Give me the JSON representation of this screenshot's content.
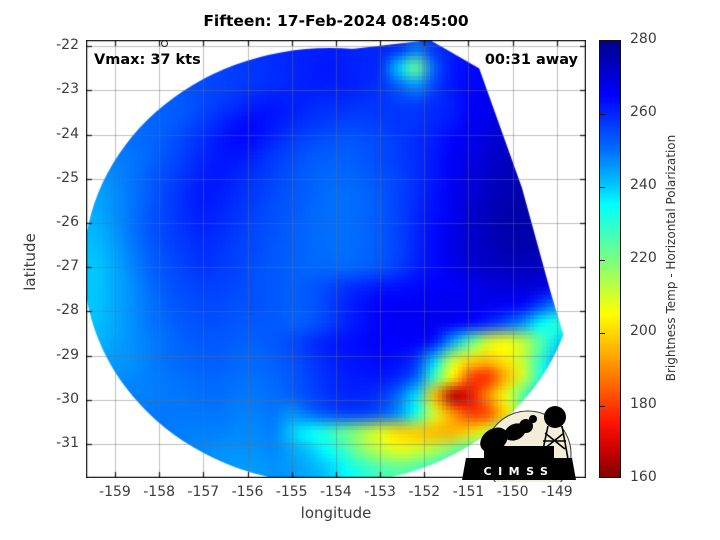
{
  "title": "Fifteen: 17-Feb-2024 08:45:00",
  "annotations": {
    "vmax": "Vmax: 37 kts",
    "time_away": "00:31 away"
  },
  "axes": {
    "xlabel": "longitude",
    "ylabel": "latitude",
    "xticks": [
      -159,
      -158,
      -157,
      -156,
      -155,
      -154,
      -153,
      -152,
      -151,
      -150,
      -149
    ],
    "yticks": [
      -22,
      -23,
      -24,
      -25,
      -26,
      -27,
      -28,
      -29,
      -30,
      -31
    ],
    "xlim": [
      -159.655,
      -148.34
    ],
    "ylim": [
      -31.77,
      -21.86
    ],
    "grid": "on"
  },
  "colorbar": {
    "label": "Brightness Temp - Horizontal Polarization",
    "min": 160,
    "max": 280,
    "ticks": [
      280,
      260,
      240,
      220,
      200,
      180,
      160
    ],
    "stops": [
      [
        160,
        "#7f0000"
      ],
      [
        167,
        "#c80000"
      ],
      [
        175,
        "#ff1400"
      ],
      [
        185,
        "#ff6400"
      ],
      [
        195,
        "#ffb400"
      ],
      [
        205,
        "#ffff00"
      ],
      [
        212,
        "#bfff3c"
      ],
      [
        220,
        "#78ff82"
      ],
      [
        225,
        "#50ffaa"
      ],
      [
        235,
        "#00ffff"
      ],
      [
        240,
        "#00c8ff"
      ],
      [
        250,
        "#006eff"
      ],
      [
        265,
        "#0000ff"
      ],
      [
        280,
        "#00008c"
      ]
    ]
  },
  "marker": {
    "lon": -157.9,
    "lat": -21.93
  },
  "logo": {
    "text": "CIMSS"
  },
  "chart_data": {
    "type": "heatmap",
    "title": "Fifteen: 17-Feb-2024 08:45:00",
    "xlabel": "longitude",
    "ylabel": "latitude",
    "value_label": "Brightness Temp - Horizontal Polarization (K)",
    "value_range": [
      160,
      280
    ],
    "lon_range": [
      -159.655,
      -148.34
    ],
    "lat_range": [
      -31.77,
      -21.86
    ],
    "nx": 28,
    "ny": 24,
    "note": "coarse grid of brightness temperatures (K), row 0 = north (-21.9 lat), col 0 = west (-159.6 lon); circular microwave swath, warm convective burst near lon -151, lat -30",
    "values": [
      [
        254,
        254,
        254,
        255,
        255,
        256,
        256,
        257,
        257,
        258,
        259,
        260,
        261,
        261,
        261,
        260,
        260,
        259,
        250,
        258,
        261,
        263,
        264,
        265,
        265,
        265,
        265,
        265
      ],
      [
        253,
        253,
        253,
        254,
        254,
        255,
        255,
        256,
        257,
        258,
        259,
        260,
        261,
        262,
        261,
        260,
        259,
        240,
        222,
        252,
        262,
        264,
        265,
        266,
        266,
        266,
        266,
        266
      ],
      [
        252,
        252,
        252,
        253,
        253,
        254,
        255,
        256,
        257,
        258,
        259,
        260,
        261,
        261,
        261,
        260,
        258,
        252,
        246,
        256,
        262,
        264,
        266,
        267,
        268,
        268,
        268,
        268
      ],
      [
        251,
        251,
        251,
        252,
        252,
        253,
        255,
        257,
        259,
        261,
        262,
        261,
        260,
        259,
        259,
        258,
        258,
        257,
        257,
        259,
        261,
        265,
        267,
        269,
        270,
        270,
        270,
        270
      ],
      [
        250,
        250,
        250,
        251,
        252,
        254,
        257,
        260,
        263,
        264,
        262,
        260,
        258,
        257,
        256,
        256,
        257,
        258,
        258,
        260,
        262,
        266,
        268,
        271,
        272,
        272,
        272,
        272
      ],
      [
        249,
        249,
        250,
        251,
        253,
        256,
        259,
        262,
        264,
        263,
        260,
        257,
        255,
        254,
        253,
        254,
        255,
        257,
        259,
        261,
        265,
        267,
        270,
        272,
        273,
        273,
        273,
        273
      ],
      [
        247,
        248,
        249,
        251,
        254,
        257,
        260,
        262,
        262,
        260,
        257,
        255,
        253,
        252,
        252,
        253,
        255,
        257,
        259,
        262,
        266,
        268,
        271,
        273,
        274,
        274,
        274,
        274
      ],
      [
        245,
        247,
        249,
        252,
        255,
        258,
        261,
        262,
        260,
        258,
        256,
        254,
        252,
        251,
        251,
        252,
        254,
        256,
        259,
        262,
        266,
        269,
        272,
        274,
        275,
        275,
        275,
        275
      ],
      [
        244,
        246,
        249,
        252,
        256,
        259,
        262,
        261,
        259,
        257,
        255,
        253,
        252,
        250,
        250,
        251,
        253,
        256,
        259,
        263,
        267,
        270,
        273,
        275,
        276,
        276,
        276,
        275
      ],
      [
        243,
        246,
        249,
        253,
        256,
        259,
        261,
        260,
        258,
        256,
        254,
        253,
        251,
        250,
        250,
        251,
        253,
        256,
        260,
        263,
        267,
        271,
        274,
        276,
        276,
        276,
        276,
        275
      ],
      [
        242,
        245,
        249,
        253,
        256,
        258,
        260,
        259,
        257,
        255,
        254,
        252,
        251,
        250,
        250,
        251,
        253,
        256,
        260,
        264,
        268,
        271,
        274,
        276,
        276,
        276,
        275,
        274
      ],
      [
        241,
        244,
        248,
        252,
        255,
        257,
        259,
        258,
        256,
        255,
        253,
        252,
        251,
        250,
        250,
        251,
        253,
        256,
        260,
        264,
        268,
        271,
        273,
        275,
        275,
        275,
        274,
        272
      ],
      [
        240,
        243,
        247,
        251,
        254,
        256,
        258,
        257,
        256,
        254,
        253,
        252,
        251,
        251,
        251,
        252,
        254,
        257,
        261,
        264,
        267,
        270,
        272,
        273,
        273,
        273,
        272,
        270
      ],
      [
        240,
        243,
        246,
        250,
        253,
        255,
        256,
        256,
        255,
        254,
        253,
        252,
        253,
        255,
        258,
        260,
        262,
        263,
        264,
        265,
        266,
        267,
        269,
        270,
        270,
        269,
        266,
        260
      ],
      [
        240,
        243,
        246,
        249,
        252,
        254,
        255,
        255,
        254,
        254,
        253,
        252,
        253,
        256,
        260,
        263,
        265,
        266,
        266,
        267,
        267,
        267,
        267,
        266,
        264,
        256,
        246,
        242
      ],
      [
        241,
        243,
        246,
        249,
        251,
        253,
        254,
        254,
        253,
        253,
        253,
        252,
        253,
        256,
        260,
        263,
        265,
        266,
        266,
        267,
        266,
        264,
        260,
        254,
        246,
        235,
        230,
        238
      ],
      [
        242,
        244,
        246,
        248,
        250,
        252,
        253,
        253,
        252,
        252,
        253,
        255,
        258,
        261,
        263,
        264,
        265,
        265,
        265,
        262,
        245,
        225,
        210,
        206,
        212,
        225,
        238,
        246
      ],
      [
        243,
        245,
        246,
        248,
        250,
        251,
        252,
        252,
        251,
        251,
        252,
        254,
        257,
        260,
        262,
        263,
        264,
        263,
        258,
        240,
        212,
        200,
        197,
        202,
        212,
        230,
        244,
        250
      ],
      [
        244,
        246,
        247,
        248,
        249,
        250,
        251,
        251,
        250,
        250,
        251,
        253,
        256,
        259,
        261,
        262,
        262,
        260,
        252,
        228,
        205,
        182,
        178,
        195,
        210,
        232,
        246,
        252
      ],
      [
        246,
        247,
        248,
        248,
        249,
        249,
        250,
        250,
        249,
        249,
        250,
        252,
        255,
        258,
        260,
        260,
        258,
        250,
        238,
        196,
        165,
        172,
        190,
        207,
        225,
        242,
        252,
        255
      ],
      [
        248,
        248,
        248,
        249,
        249,
        249,
        249,
        249,
        248,
        248,
        249,
        246,
        250,
        254,
        256,
        256,
        253,
        246,
        232,
        210,
        192,
        180,
        182,
        200,
        222,
        242,
        252,
        256
      ],
      [
        250,
        250,
        249,
        249,
        249,
        248,
        248,
        248,
        247,
        247,
        248,
        240,
        235,
        230,
        222,
        215,
        208,
        200,
        198,
        196,
        195,
        200,
        210,
        225,
        240,
        250,
        255,
        257
      ],
      [
        252,
        251,
        250,
        250,
        249,
        248,
        247,
        246,
        246,
        246,
        247,
        244,
        240,
        235,
        228,
        218,
        212,
        208,
        210,
        214,
        220,
        228,
        238,
        246,
        252,
        256,
        258,
        258
      ],
      [
        253,
        252,
        251,
        250,
        249,
        248,
        247,
        246,
        245,
        245,
        246,
        245,
        243,
        240,
        235,
        230,
        226,
        224,
        226,
        230,
        238,
        244,
        250,
        254,
        256,
        257,
        258,
        258
      ]
    ]
  }
}
